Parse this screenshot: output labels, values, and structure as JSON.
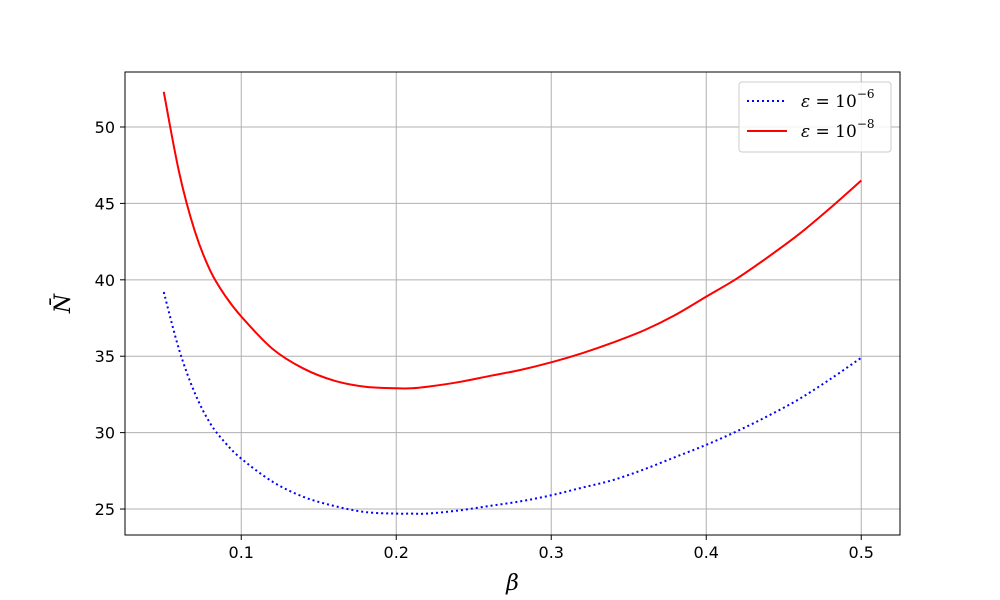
{
  "chart_data": {
    "type": "line",
    "xlabel": "β",
    "ylabel": "N̄",
    "xlim": [
      0.025,
      0.525
    ],
    "ylim": [
      23.3,
      53.6
    ],
    "grid": true,
    "legend_position": "top-right",
    "x_ticks": [
      0.1,
      0.2,
      0.3,
      0.4,
      0.5
    ],
    "x_tick_labels": [
      "0.1",
      "0.2",
      "0.3",
      "0.4",
      "0.5"
    ],
    "y_ticks": [
      25,
      30,
      35,
      40,
      45,
      50
    ],
    "y_tick_labels": [
      "25",
      "30",
      "35",
      "40",
      "45",
      "50"
    ],
    "series": [
      {
        "name": "ε = 10⁻⁶",
        "legend": {
          "symbol": "ε",
          "eq": " = 10",
          "exp": "−6"
        },
        "color": "#0000ff",
        "style": "dotted",
        "x": [
          0.05,
          0.06,
          0.07,
          0.08,
          0.09,
          0.1,
          0.12,
          0.14,
          0.16,
          0.18,
          0.2,
          0.21,
          0.22,
          0.24,
          0.26,
          0.28,
          0.3,
          0.32,
          0.34,
          0.36,
          0.38,
          0.4,
          0.42,
          0.44,
          0.46,
          0.48,
          0.5
        ],
        "y": [
          39.2,
          35.4,
          32.6,
          30.6,
          29.3,
          28.3,
          26.8,
          25.8,
          25.2,
          24.8,
          24.7,
          24.7,
          24.7,
          24.9,
          25.2,
          25.5,
          25.9,
          26.4,
          26.9,
          27.6,
          28.4,
          29.2,
          30.1,
          31.1,
          32.2,
          33.5,
          34.9
        ]
      },
      {
        "name": "ε = 10⁻⁸",
        "legend": {
          "symbol": "ε",
          "eq": " = 10",
          "exp": "−8"
        },
        "color": "#ff0000",
        "style": "solid",
        "x": [
          0.05,
          0.06,
          0.07,
          0.08,
          0.09,
          0.1,
          0.12,
          0.14,
          0.16,
          0.18,
          0.2,
          0.21,
          0.22,
          0.24,
          0.26,
          0.28,
          0.3,
          0.32,
          0.34,
          0.36,
          0.38,
          0.4,
          0.42,
          0.44,
          0.46,
          0.48,
          0.5
        ],
        "y": [
          52.3,
          47.0,
          43.2,
          40.6,
          38.9,
          37.6,
          35.5,
          34.2,
          33.4,
          33.0,
          32.9,
          32.9,
          33.0,
          33.3,
          33.7,
          34.1,
          34.6,
          35.2,
          35.9,
          36.7,
          37.7,
          38.9,
          40.1,
          41.5,
          43.0,
          44.7,
          46.5
        ]
      }
    ]
  }
}
